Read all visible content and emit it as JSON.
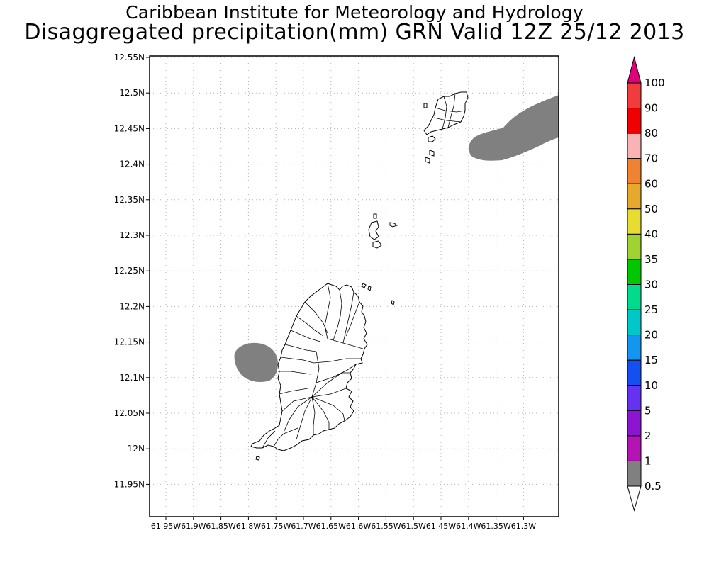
{
  "titles": {
    "line1": "Caribbean Institute for Meteorology and Hydrology",
    "line2": "Disaggregated precipitation(mm) GRN Valid 12Z 25/12 2013"
  },
  "map": {
    "lat_ticks": [
      "12.55N",
      "12.5N",
      "12.45N",
      "12.4N",
      "12.35N",
      "12.3N",
      "12.25N",
      "12.2N",
      "12.15N",
      "12.1N",
      "12.05N",
      "12N",
      "11.95N"
    ],
    "lon_ticks": [
      "61.95W",
      "61.9W",
      "61.85W",
      "61.8W",
      "61.75W",
      "61.7W",
      "61.65W",
      "61.6W",
      "61.55W",
      "61.5W",
      "61.45W",
      "61.4W",
      "61.35W",
      "61.3W"
    ],
    "grid": "dotted",
    "precip_fill_color": "#808080",
    "coast_color": "#000000"
  },
  "legend": {
    "placement": "right",
    "labels": [
      "100",
      "90",
      "80",
      "70",
      "60",
      "50",
      "40",
      "35",
      "30",
      "25",
      "20",
      "15",
      "10",
      "5",
      "2",
      "1",
      "0.5"
    ],
    "colors": [
      "#e0007a",
      "#f03c3c",
      "#f00000",
      "#f8b4b4",
      "#f08232",
      "#e6a82d",
      "#e6dc32",
      "#a0d232",
      "#00c800",
      "#00dc8c",
      "#00c8c8",
      "#1496f0",
      "#1450f0",
      "#6432f0",
      "#8c14d2",
      "#b414b4",
      "#808080",
      "#ffffff"
    ]
  }
}
